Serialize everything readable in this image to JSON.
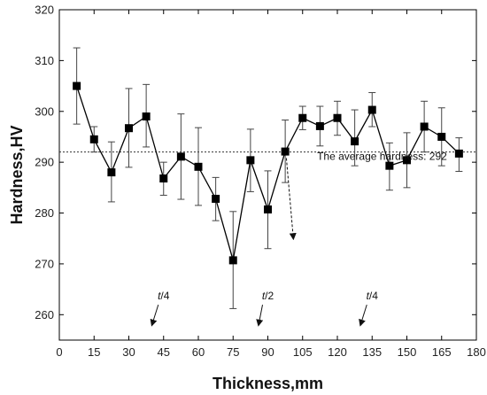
{
  "chart_data": {
    "type": "line",
    "title": "",
    "xlabel": "Thickness,mm",
    "ylabel": "Hardness,HV",
    "xlim": [
      0,
      180
    ],
    "ylim": [
      255,
      320
    ],
    "xticks": [
      0,
      15,
      30,
      45,
      60,
      75,
      90,
      105,
      120,
      135,
      150,
      165,
      180
    ],
    "yticks": [
      260,
      270,
      280,
      290,
      300,
      310,
      320
    ],
    "grid": false,
    "series": [
      {
        "x": [
          7.5,
          15,
          22.5,
          30,
          37.5,
          45,
          52.5,
          60,
          67.5,
          75,
          82.5,
          90,
          97.5,
          105,
          112.5,
          120,
          127.5,
          135,
          142.5,
          150,
          157.5,
          165,
          172.5
        ],
        "y": [
          305.0,
          294.5,
          288.0,
          296.7,
          299.0,
          286.8,
          291.1,
          289.1,
          282.8,
          270.7,
          290.4,
          280.7,
          292.1,
          298.7,
          297.1,
          298.7,
          294.1,
          300.3,
          289.3,
          290.4,
          297.0,
          295.0,
          291.7
        ],
        "err_hi": [
          312.5,
          297.0,
          294.0,
          304.5,
          305.3,
          290.0,
          299.5,
          296.8,
          287.0,
          280.3,
          296.5,
          288.3,
          298.3,
          301.0,
          301.0,
          302.0,
          300.3,
          303.7,
          293.8,
          295.8,
          302.0,
          300.7,
          294.8
        ],
        "err_lo": [
          297.5,
          292.0,
          282.2,
          289.0,
          293.0,
          283.5,
          282.7,
          281.5,
          278.5,
          261.2,
          284.2,
          273.0,
          286.0,
          296.4,
          293.2,
          295.3,
          289.3,
          297.0,
          284.5,
          285.0,
          292.0,
          289.3,
          288.2
        ],
        "color": "#000000"
      }
    ],
    "reference_line": {
      "y": 292,
      "style": "dotted"
    },
    "annotations": [
      {
        "text": "The average hardness: 292",
        "x": 112,
        "y": 290.5,
        "arrow_to": {
          "x": 101,
          "y": 275
        }
      },
      {
        "text": "t/4",
        "italic_part": "t",
        "x": 45,
        "y": 263,
        "arrow_to": {
          "x": 40,
          "y": 258
        }
      },
      {
        "text": "t/2",
        "italic_part": "t",
        "x": 90,
        "y": 263,
        "arrow_to": {
          "x": 86,
          "y": 258
        }
      },
      {
        "text": "t/4",
        "italic_part": "t",
        "x": 135,
        "y": 263,
        "arrow_to": {
          "x": 130,
          "y": 258
        }
      }
    ]
  }
}
